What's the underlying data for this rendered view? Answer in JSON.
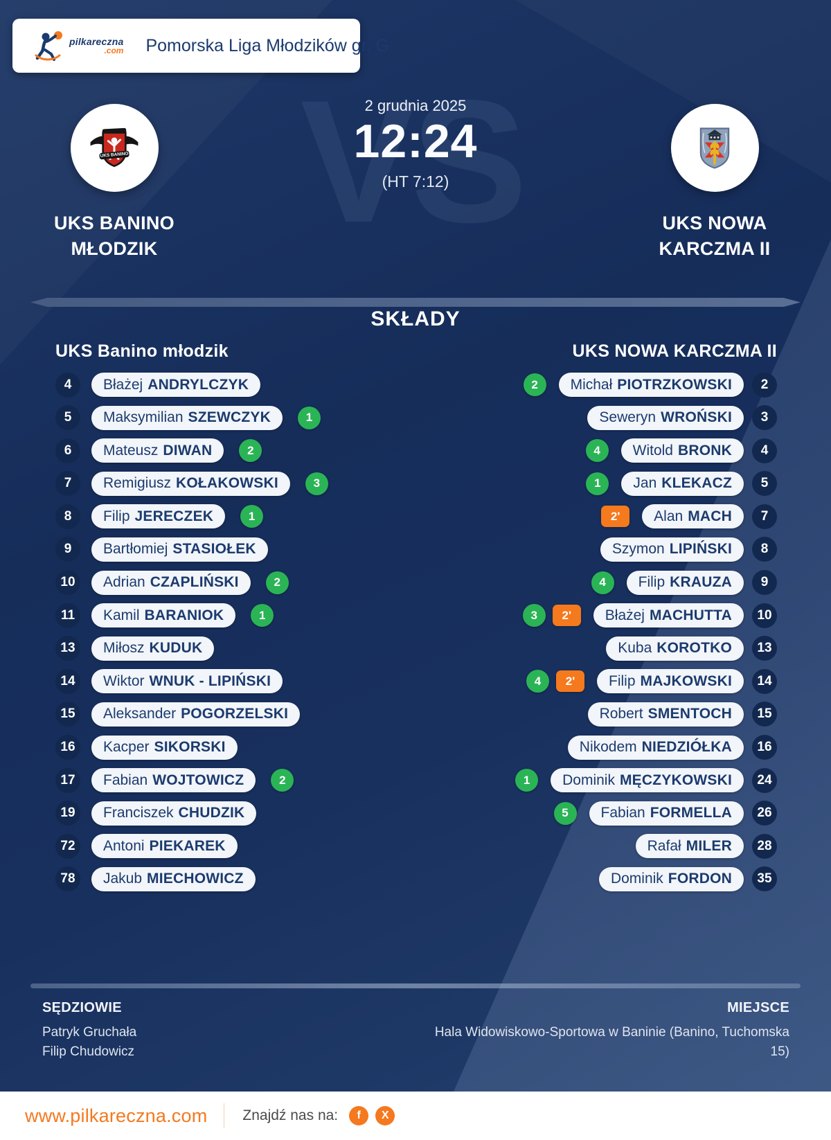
{
  "header": {
    "brand": "pilkareczna",
    "brand_tld": ".com",
    "league": "Pomorska Liga Młodzików gr. G"
  },
  "match": {
    "date": "2 grudnia 2025",
    "score": "12:24",
    "halftime": "(HT 7:12)",
    "vs_watermark": "VS",
    "home": {
      "name_line1": "UKS BANINO",
      "name_line2": "MŁODZIK"
    },
    "away": {
      "name_line1": "UKS NOWA",
      "name_line2": "KARCZMA II"
    }
  },
  "lineups": {
    "title": "SKŁADY",
    "home": {
      "header": "UKS Banino młodzik",
      "players": [
        {
          "number": "4",
          "first": "Błażej",
          "last": "ANDRYLCZYK"
        },
        {
          "number": "5",
          "first": "Maksymilian",
          "last": "SZEWCZYK",
          "goals": "1"
        },
        {
          "number": "6",
          "first": "Mateusz",
          "last": "DIWAN",
          "goals": "2"
        },
        {
          "number": "7",
          "first": "Remigiusz",
          "last": "KOŁAKOWSKI",
          "goals": "3"
        },
        {
          "number": "8",
          "first": "Filip",
          "last": "JERECZEK",
          "goals": "1"
        },
        {
          "number": "9",
          "first": "Bartłomiej",
          "last": "STASIOŁEK"
        },
        {
          "number": "10",
          "first": "Adrian",
          "last": "CZAPLIŃSKI",
          "goals": "2"
        },
        {
          "number": "11",
          "first": "Kamil",
          "last": "BARANIOK",
          "goals": "1"
        },
        {
          "number": "13",
          "first": "Miłosz",
          "last": "KUDUK"
        },
        {
          "number": "14",
          "first": "Wiktor",
          "last": "WNUK - LIPIŃSKI"
        },
        {
          "number": "15",
          "first": "Aleksander",
          "last": "POGORZELSKI"
        },
        {
          "number": "16",
          "first": "Kacper",
          "last": "SIKORSKI"
        },
        {
          "number": "17",
          "first": "Fabian",
          "last": "WOJTOWICZ",
          "goals": "2"
        },
        {
          "number": "19",
          "first": "Franciszek",
          "last": "CHUDZIK"
        },
        {
          "number": "72",
          "first": "Antoni",
          "last": "PIEKAREK"
        },
        {
          "number": "78",
          "first": "Jakub",
          "last": "MIECHOWICZ"
        }
      ]
    },
    "away": {
      "header": "UKS NOWA KARCZMA II",
      "players": [
        {
          "number": "2",
          "first": "Michał",
          "last": "PIOTRZKOWSKI",
          "goals": "2"
        },
        {
          "number": "3",
          "first": "Seweryn",
          "last": "WROŃSKI"
        },
        {
          "number": "4",
          "first": "Witold",
          "last": "BRONK",
          "goals": "4"
        },
        {
          "number": "5",
          "first": "Jan",
          "last": "KLEKACZ",
          "goals": "1"
        },
        {
          "number": "7",
          "first": "Alan",
          "last": "MACH",
          "penalty": "2'"
        },
        {
          "number": "8",
          "first": "Szymon",
          "last": "LIPIŃSKI"
        },
        {
          "number": "9",
          "first": "Filip",
          "last": "KRAUZA",
          "goals": "4"
        },
        {
          "number": "10",
          "first": "Błażej",
          "last": "MACHUTTA",
          "goals": "3",
          "penalty": "2'"
        },
        {
          "number": "13",
          "first": "Kuba",
          "last": "KOROTKO"
        },
        {
          "number": "14",
          "first": "Filip",
          "last": "MAJKOWSKI",
          "goals": "4",
          "penalty": "2'"
        },
        {
          "number": "15",
          "first": "Robert",
          "last": "SMENTOCH"
        },
        {
          "number": "16",
          "first": "Nikodem",
          "last": "NIEDZIÓŁKA"
        },
        {
          "number": "24",
          "first": "Dominik",
          "last": "MĘCZYKOWSKI",
          "goals": "1"
        },
        {
          "number": "26",
          "first": "Fabian",
          "last": "FORMELLA",
          "goals": "5"
        },
        {
          "number": "28",
          "first": "Rafał",
          "last": "MILER"
        },
        {
          "number": "35",
          "first": "Dominik",
          "last": "FORDON"
        }
      ]
    }
  },
  "officials": {
    "referees_label": "SĘDZIOWIE",
    "referees": [
      "Patryk Gruchała",
      "Filip Chudowicz"
    ],
    "venue_label": "MIEJSCE",
    "venue_lines": [
      "Hala Widowiskowo-Sportowa w Baninie (Banino, Tuchomska",
      "15)"
    ]
  },
  "footer": {
    "website": "www.pilkareczna.com",
    "find_us_label": "Znajdź nas na:",
    "social": [
      {
        "name": "facebook",
        "glyph": "f"
      },
      {
        "name": "x",
        "glyph": "X"
      }
    ]
  },
  "colors": {
    "background_navy": "#162D5A",
    "pill_bg": "#F2F5F9",
    "pill_text": "#1C3B6E",
    "goal_badge_green": "#2BB456",
    "penalty_badge_orange": "#F5791D",
    "accent_orange": "#F4791F",
    "divider_slate": "#51668C",
    "white": "#FFFFFF"
  }
}
